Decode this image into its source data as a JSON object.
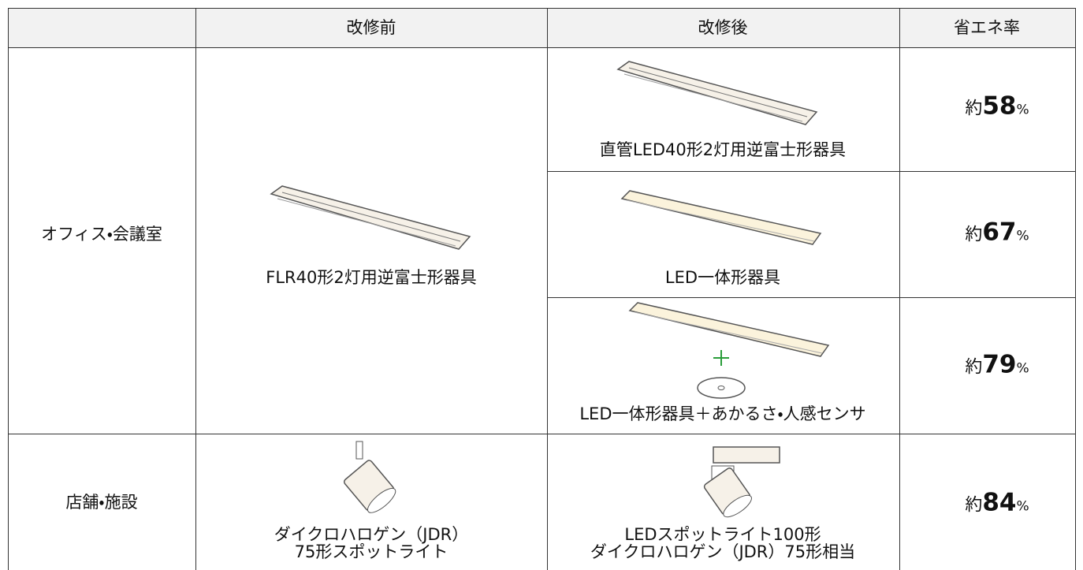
{
  "header": {
    "before": "改修前",
    "after": "改修後",
    "rate": "省エネ率"
  },
  "rows": [
    {
      "place": "オフィス・会議室",
      "before": [
        "FLR40形2灯用逆富士形器具"
      ],
      "options": [
        {
          "after": [
            "直管LED40形2灯用逆富士形器具"
          ],
          "prefix": "約",
          "rate": 58,
          "unit": "%"
        },
        {
          "after": [
            "LED一体形器具"
          ],
          "prefix": "約",
          "rate": 67,
          "unit": "%"
        },
        {
          "after": [
            "LED一体形器具＋あかるさ・人感センサ"
          ],
          "prefix": "約",
          "rate": 79,
          "unit": "%"
        }
      ]
    },
    {
      "place": "店舗・施設",
      "before": [
        "ダイクロハロゲン（JDR）",
        "75形スポットライト"
      ],
      "options": [
        {
          "after": [
            "LEDスポットライト100形",
            "ダイクロハロゲン（JDR）75形相当"
          ],
          "prefix": "約",
          "rate": 84,
          "unit": "%"
        }
      ]
    }
  ]
}
